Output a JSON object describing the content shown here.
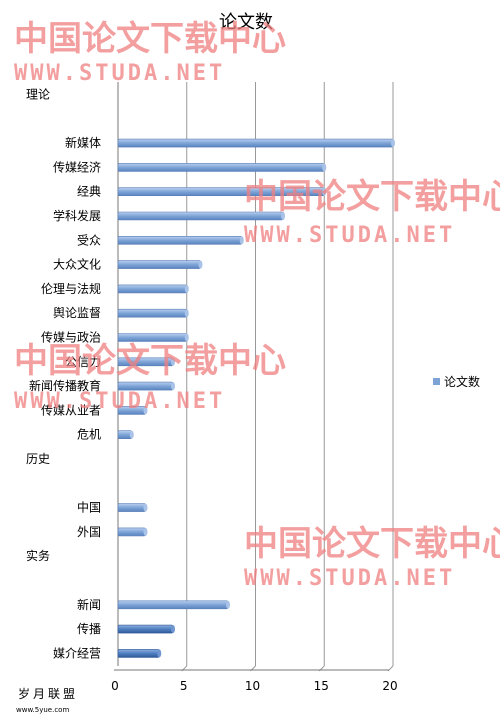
{
  "chart_data": {
    "type": "bar",
    "orientation": "horizontal",
    "title": "论文数",
    "categories": [
      "理论",
      "",
      "新媒体",
      "传媒经济",
      "经典",
      "学科发展",
      "受众",
      "大众文化",
      "伦理与法规",
      "舆论监督",
      "传媒与政治",
      "公信力",
      "新闻传播教育",
      "传媒从业者",
      "危机",
      "历史",
      "",
      "中国",
      "外国",
      "实务",
      "",
      "新闻",
      "传播",
      "媒介经营"
    ],
    "series": [
      {
        "name": "论文数",
        "values": [
          0,
          0,
          20,
          15,
          15,
          12,
          9,
          6,
          5,
          5,
          5,
          4,
          4,
          2,
          1,
          0,
          0,
          2,
          2,
          0,
          0,
          8,
          4,
          3
        ]
      }
    ],
    "xlim": [
      0,
      20
    ],
    "xticks": [
      0,
      5,
      10,
      15,
      20
    ],
    "grid": true,
    "legend": "right",
    "colors": {
      "bar": "#7ea4d6",
      "bar_dark": "#4f7fc0",
      "grid": "#999999"
    }
  },
  "watermark": {
    "line1": "中国论文下载中心",
    "line2": "WWW.STUDA.NET"
  },
  "footer": {
    "logo": "岁月联盟",
    "url": "www.5yue.com"
  }
}
